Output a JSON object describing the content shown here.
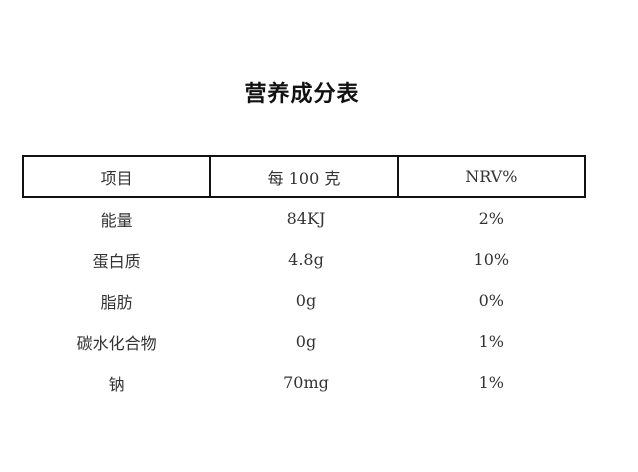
{
  "title": "营养成分表",
  "table": {
    "headers": [
      "项目",
      "每 100 克",
      "NRV%"
    ],
    "rows": [
      {
        "name": "能量",
        "per100g": "84KJ",
        "nrv": "2%"
      },
      {
        "name": "蛋白质",
        "per100g": "4.8g",
        "nrv": "10%"
      },
      {
        "name": "脂肪",
        "per100g": "0g",
        "nrv": "0%"
      },
      {
        "name": "碳水化合物",
        "per100g": "0g",
        "nrv": "1%"
      },
      {
        "name": "钠",
        "per100g": "70mg",
        "nrv": "1%"
      }
    ]
  }
}
